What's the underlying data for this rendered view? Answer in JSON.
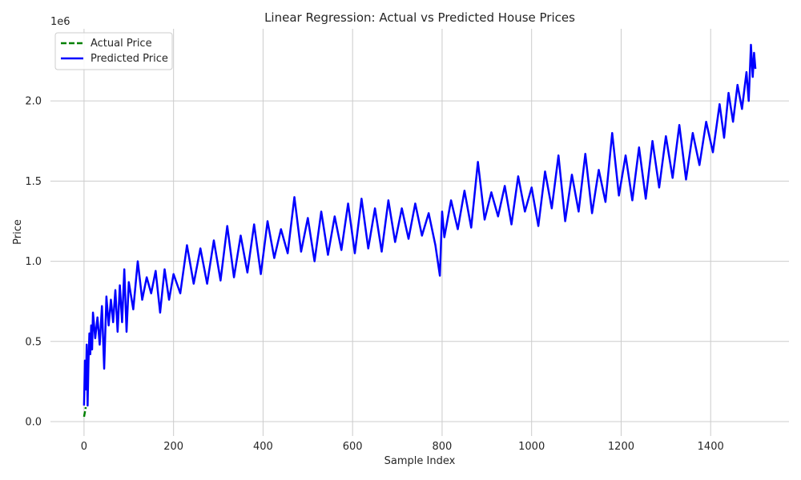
{
  "chart_data": {
    "type": "line",
    "title": "Linear Regression: Actual vs Predicted House Prices",
    "xlabel": "Sample Index",
    "ylabel": "Price",
    "y_offset_label": "1e6",
    "xlim": [
      -75,
      1575
    ],
    "ylim": [
      -90000,
      2450000
    ],
    "y_scale_factor": 1000000,
    "x_ticks": [
      0,
      200,
      400,
      600,
      800,
      1000,
      1200,
      1400
    ],
    "x_tick_labels": [
      "0",
      "200",
      "400",
      "600",
      "800",
      "1000",
      "1200",
      "1400"
    ],
    "y_ticks": [
      0,
      500000,
      1000000,
      1500000,
      2000000
    ],
    "y_tick_labels": [
      "0.0",
      "0.5",
      "1.0",
      "1.5",
      "2.0"
    ],
    "grid": true,
    "legend_position": "top-left",
    "series": [
      {
        "name": "Actual Price",
        "color": "#008000",
        "style": "dashed",
        "x": [
          0,
          2,
          4
        ],
        "y": [
          30000,
          60000,
          90000
        ]
      },
      {
        "name": "Predicted Price",
        "color": "#0000ff",
        "style": "solid",
        "x": [
          0,
          2,
          4,
          6,
          8,
          10,
          12,
          14,
          16,
          18,
          20,
          25,
          30,
          35,
          40,
          45,
          50,
          55,
          60,
          65,
          70,
          75,
          80,
          85,
          90,
          95,
          100,
          110,
          120,
          130,
          140,
          150,
          160,
          170,
          180,
          190,
          200,
          215,
          230,
          245,
          260,
          275,
          290,
          305,
          320,
          335,
          350,
          365,
          380,
          395,
          410,
          425,
          440,
          455,
          470,
          485,
          500,
          515,
          530,
          545,
          560,
          575,
          590,
          605,
          620,
          635,
          650,
          665,
          680,
          695,
          710,
          725,
          740,
          755,
          770,
          785,
          795,
          800,
          805,
          820,
          835,
          850,
          865,
          880,
          895,
          910,
          925,
          940,
          955,
          970,
          985,
          1000,
          1015,
          1030,
          1045,
          1060,
          1075,
          1090,
          1105,
          1120,
          1135,
          1150,
          1165,
          1180,
          1195,
          1210,
          1225,
          1240,
          1255,
          1270,
          1285,
          1300,
          1315,
          1330,
          1345,
          1360,
          1375,
          1390,
          1405,
          1420,
          1430,
          1440,
          1450,
          1460,
          1470,
          1480,
          1485,
          1490,
          1494,
          1497,
          1500
        ],
        "y": [
          100000,
          380000,
          200000,
          480000,
          100000,
          380000,
          550000,
          420000,
          600000,
          450000,
          680000,
          520000,
          650000,
          480000,
          720000,
          330000,
          780000,
          600000,
          760000,
          620000,
          820000,
          560000,
          850000,
          620000,
          950000,
          560000,
          870000,
          700000,
          1000000,
          760000,
          900000,
          800000,
          940000,
          680000,
          950000,
          760000,
          920000,
          800000,
          1100000,
          860000,
          1080000,
          860000,
          1130000,
          880000,
          1220000,
          900000,
          1160000,
          930000,
          1230000,
          920000,
          1250000,
          1020000,
          1200000,
          1050000,
          1400000,
          1060000,
          1270000,
          1000000,
          1310000,
          1040000,
          1280000,
          1070000,
          1360000,
          1050000,
          1390000,
          1080000,
          1330000,
          1060000,
          1380000,
          1120000,
          1330000,
          1140000,
          1360000,
          1160000,
          1300000,
          1100000,
          910000,
          1310000,
          1150000,
          1380000,
          1200000,
          1440000,
          1210000,
          1620000,
          1260000,
          1430000,
          1280000,
          1470000,
          1230000,
          1530000,
          1310000,
          1460000,
          1220000,
          1560000,
          1330000,
          1660000,
          1250000,
          1540000,
          1310000,
          1670000,
          1300000,
          1570000,
          1370000,
          1800000,
          1410000,
          1660000,
          1380000,
          1710000,
          1390000,
          1750000,
          1460000,
          1780000,
          1520000,
          1850000,
          1510000,
          1800000,
          1600000,
          1870000,
          1680000,
          1980000,
          1770000,
          2050000,
          1870000,
          2100000,
          1950000,
          2180000,
          2000000,
          2350000,
          2150000,
          2300000,
          2200000
        ]
      }
    ]
  }
}
